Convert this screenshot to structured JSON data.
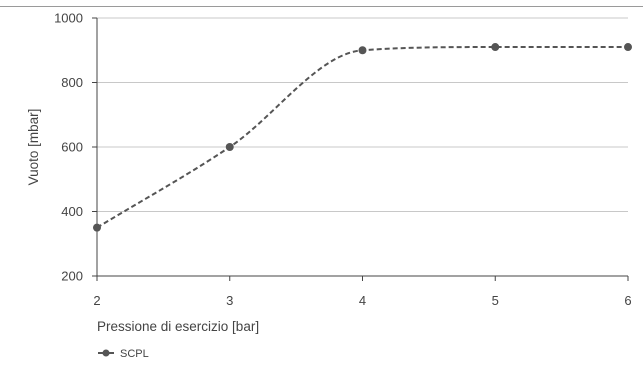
{
  "chart_data": {
    "type": "line",
    "title": "",
    "xlabel": "Pressione di esercizio [bar]",
    "ylabel": "Vuoto [mbar]",
    "x": [
      2,
      3,
      4,
      5,
      6
    ],
    "xticks": [
      "2",
      "3",
      "4",
      "5",
      "6"
    ],
    "xlim": [
      2,
      6
    ],
    "ylim": [
      200,
      1000
    ],
    "yticks": [
      "200",
      "400",
      "600",
      "800",
      "1000"
    ],
    "grid": true,
    "smooth": true,
    "legend_position": "bottom-left",
    "series": [
      {
        "name": "SCPL",
        "values": [
          350,
          600,
          900,
          910,
          910
        ],
        "color": "#555555",
        "line_style": "dashed"
      }
    ]
  }
}
